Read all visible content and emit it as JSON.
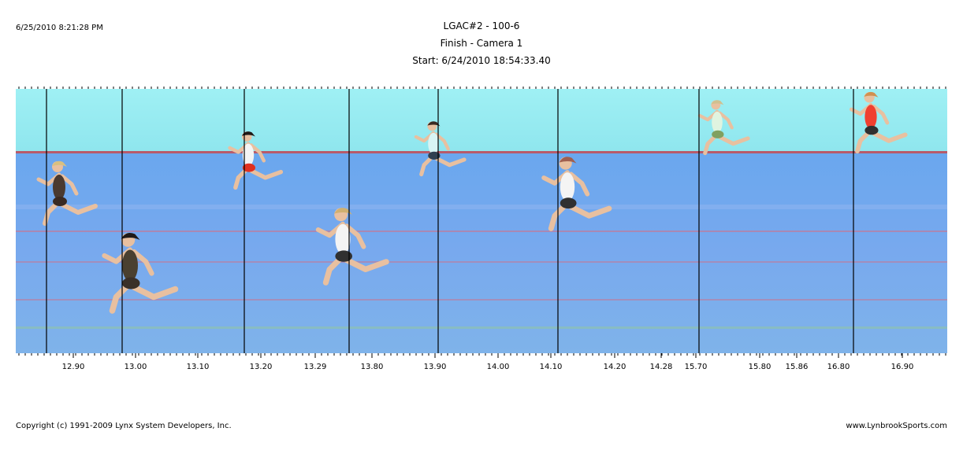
{
  "header": {
    "timestamp": "6/25/2010 8:21:28 PM",
    "title": "LGAC#2 - 100-6",
    "camera": "Finish - Camera 1",
    "start": "Start: 6/24/2010 18:54:33.40"
  },
  "timeline": {
    "labels": [
      "12.90",
      "13.00",
      "13.10",
      "13.20",
      "13.29",
      "13.80",
      "13.90",
      "14.00",
      "14.10",
      "14.20",
      "14.28",
      "15.70",
      "15.80",
      "15.86",
      "16.80",
      "16.90"
    ]
  },
  "footer": {
    "copyright": "Copyright (c) 1991-2009 Lynx System Developers, Inc.",
    "website": "www.LynbrookSports.com"
  }
}
